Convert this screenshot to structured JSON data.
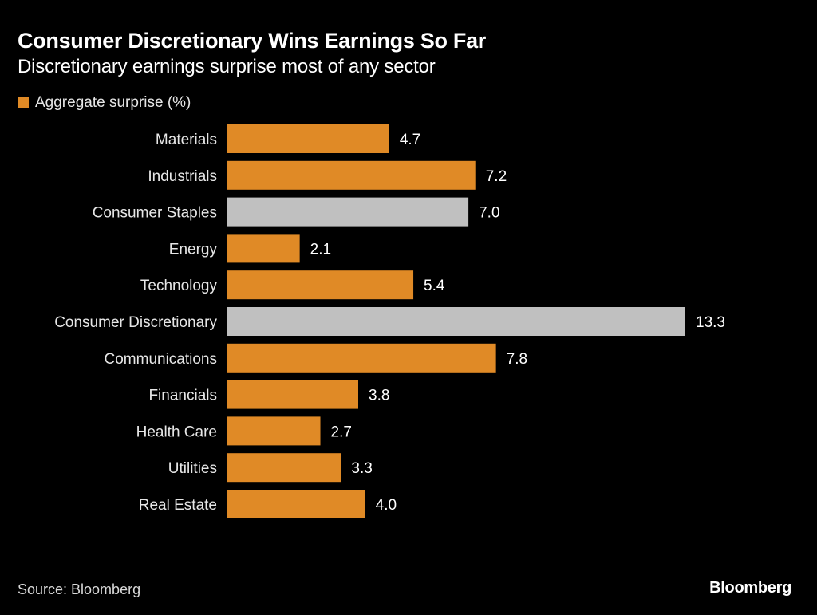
{
  "colors": {
    "background": "#000000",
    "default_bar": "#E08A26",
    "highlight_bar": "#C0C0C0",
    "text": "#FFFFFF",
    "label_text": "#E6E6E6"
  },
  "chart_data": {
    "type": "bar",
    "orientation": "horizontal",
    "title": "Consumer Discretionary Wins Earnings So Far",
    "subtitle": "Discretionary earnings surprise most of any sector",
    "legend": [
      {
        "label": "Aggregate surprise (%)",
        "color": "#E08A26"
      }
    ],
    "legend_position": "top-left",
    "xlabel": "",
    "ylabel": "",
    "xlim": [
      0,
      13.3
    ],
    "grid": false,
    "categories": [
      "Materials",
      "Industrials",
      "Consumer Staples",
      "Energy",
      "Technology",
      "Consumer Discretionary",
      "Communications",
      "Financials",
      "Health Care",
      "Utilities",
      "Real Estate"
    ],
    "series": [
      {
        "name": "Aggregate surprise (%)",
        "values": [
          4.7,
          7.2,
          7.0,
          2.1,
          5.4,
          13.3,
          7.8,
          3.8,
          2.7,
          3.3,
          4.0
        ]
      }
    ],
    "value_labels": [
      "4.7",
      "7.2",
      "7.0",
      "2.1",
      "5.4",
      "13.3",
      "7.8",
      "3.8",
      "2.7",
      "3.3",
      "4.0"
    ],
    "highlighted": [
      "Consumer Staples",
      "Consumer Discretionary"
    ]
  },
  "footer": {
    "source": "Source: Bloomberg",
    "brand": "Bloomberg"
  }
}
